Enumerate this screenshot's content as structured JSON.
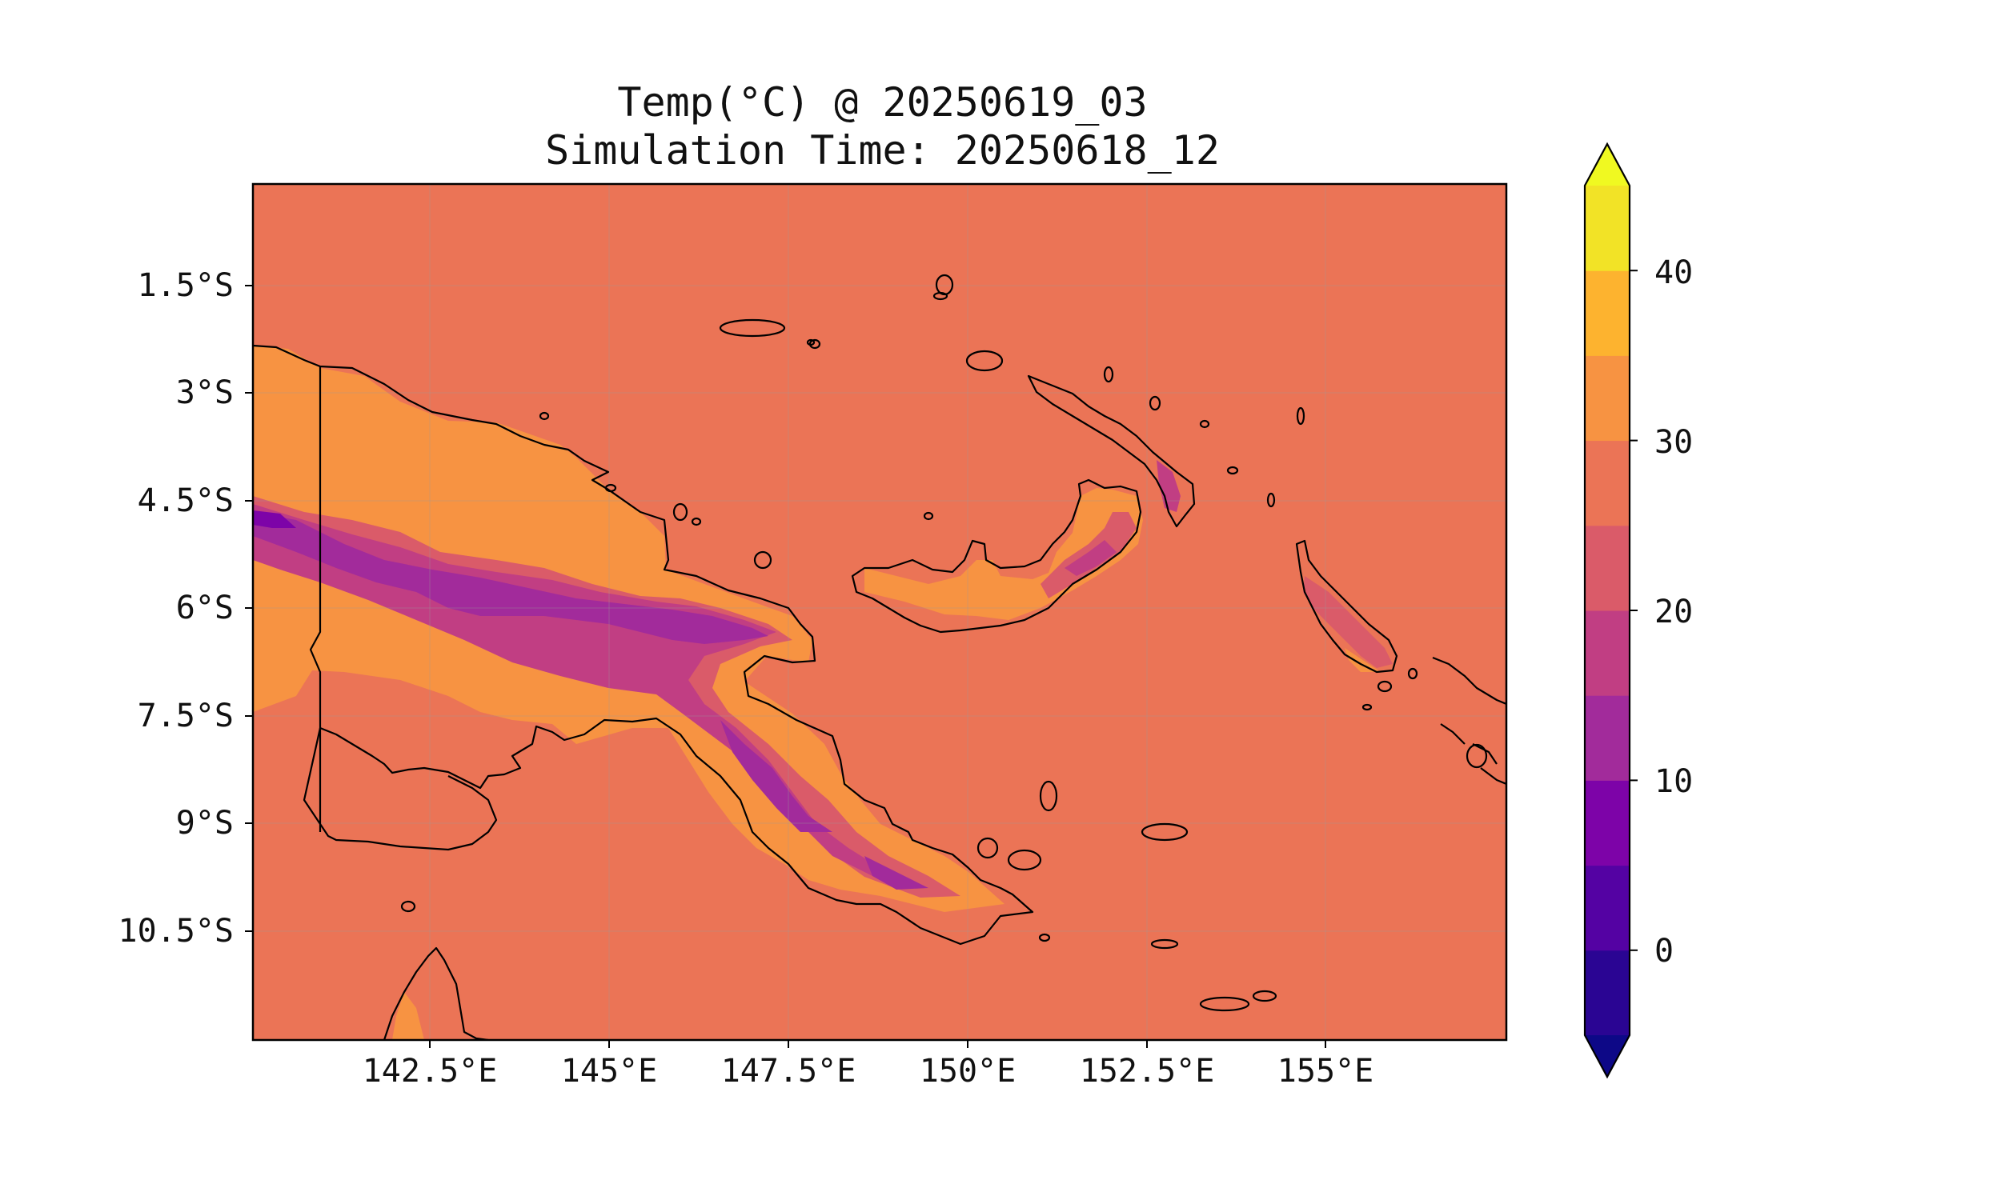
{
  "title": {
    "line1": "Temp(°C) @ 20250619_03",
    "line2": "Simulation Time: 20250618_12"
  },
  "map": {
    "region": "Papua New Guinea",
    "lon_range": [
      140.0,
      157.5
    ],
    "lat_range": [
      -12.0,
      -0.6
    ],
    "background_value": 27,
    "land_outline_color": "#000000",
    "grid": true
  },
  "axes": {
    "x_ticks": [
      "142.5°E",
      "145°E",
      "147.5°E",
      "150°E",
      "152.5°E",
      "155°E"
    ],
    "y_ticks": [
      "1.5°S",
      "3°S",
      "4.5°S",
      "6°S",
      "7.5°S",
      "9°S",
      "10.5°S"
    ]
  },
  "colorbar": {
    "ticks": [
      "40",
      "30",
      "20",
      "10",
      "0"
    ],
    "range": [
      -5,
      45
    ],
    "levels": [
      -5,
      0,
      5,
      10,
      15,
      20,
      25,
      30,
      35,
      40,
      45
    ],
    "colors": [
      "#2a0593",
      "#5402a3",
      "#7d03a8",
      "#a22b9b",
      "#c13e83",
      "#da5b69",
      "#eb7456",
      "#f79342",
      "#fdb32f",
      "#f2e326"
    ],
    "extend_low_color": "#0d0887",
    "extend_high_color": "#f0f921"
  }
}
